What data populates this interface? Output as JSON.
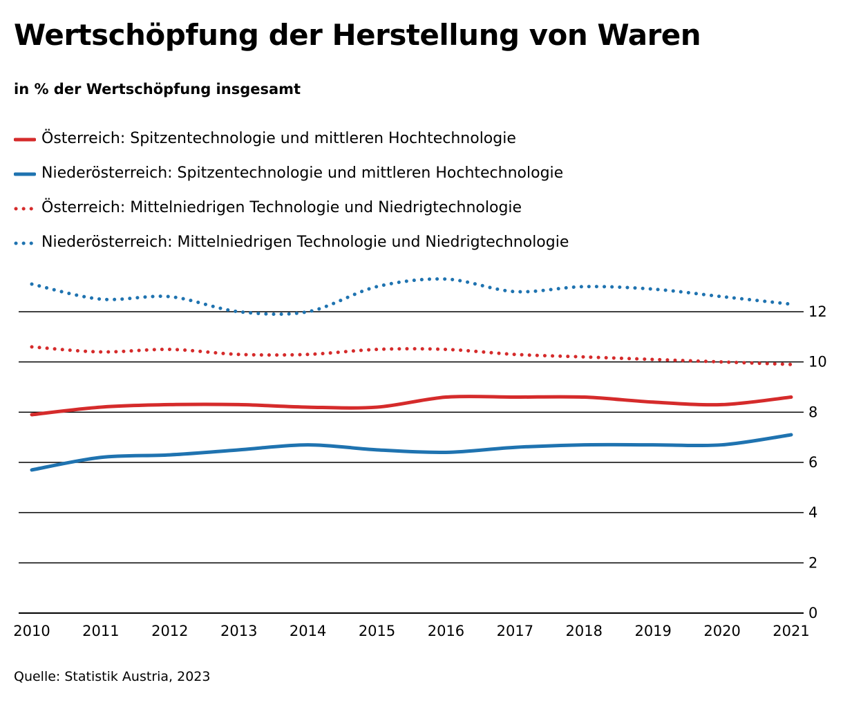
{
  "header": {
    "title": "Wertschöpfung der Herstellung von Waren",
    "subtitle": "in % der Wertschöpfung insgesamt"
  },
  "legend": [
    {
      "label": "Österreich: Spitzentechnologie und mittleren Hochtechnologie",
      "color": "#d52b2b",
      "style": "solid"
    },
    {
      "label": "Niederösterreich: Spitzentechnologie und mittleren Hochtechnologie",
      "color": "#1f73b0",
      "style": "solid"
    },
    {
      "label": "Österreich: Mittelniedrigen Technologie und Niedrigtechnologie",
      "color": "#d52b2b",
      "style": "dotted"
    },
    {
      "label": "Niederösterreich: Mittelniedrigen Technologie und Niedrigtechnologie",
      "color": "#1f73b0",
      "style": "dotted"
    }
  ],
  "chart_data": {
    "type": "line",
    "title": "Wertschöpfung der Herstellung von Waren",
    "subtitle": "in % der Wertschöpfung insgesamt",
    "xlabel": "",
    "ylabel": "",
    "x": [
      "2010",
      "2011",
      "2012",
      "2013",
      "2014",
      "2015",
      "2016",
      "2017",
      "2018",
      "2019",
      "2020",
      "2021"
    ],
    "ylim": [
      0,
      12
    ],
    "yticks": [
      "0",
      "2",
      "4",
      "6",
      "8",
      "10",
      "12"
    ],
    "y_axis_side": "right",
    "grid": true,
    "legend_position": "top",
    "series": [
      {
        "name": "Österreich: Spitzentechnologie und mittleren Hochtechnologie",
        "color": "#d52b2b",
        "style": "solid",
        "values": [
          7.9,
          8.2,
          8.3,
          8.3,
          8.2,
          8.2,
          8.6,
          8.6,
          8.6,
          8.4,
          8.3,
          8.6
        ]
      },
      {
        "name": "Niederösterreich: Spitzentechnologie und mittleren Hochtechnologie",
        "color": "#1f73b0",
        "style": "solid",
        "values": [
          5.7,
          6.2,
          6.3,
          6.5,
          6.7,
          6.5,
          6.4,
          6.6,
          6.7,
          6.7,
          6.7,
          7.1
        ]
      },
      {
        "name": "Österreich: Mittelniedrigen Technologie und Niedrigtechnologie",
        "color": "#d52b2b",
        "style": "dotted",
        "values": [
          10.6,
          10.4,
          10.5,
          10.3,
          10.3,
          10.5,
          10.5,
          10.3,
          10.2,
          10.1,
          10.0,
          9.9
        ]
      },
      {
        "name": "Niederösterreich: Mittelniedrigen Technologie und Niedrigtechnologie",
        "color": "#1f73b0",
        "style": "dotted",
        "values": [
          13.1,
          12.5,
          12.6,
          12.0,
          12.0,
          13.0,
          13.3,
          12.8,
          13.0,
          12.9,
          12.6,
          12.3
        ]
      }
    ]
  },
  "footer": {
    "source": "Quelle: Statistik Austria, 2023"
  }
}
